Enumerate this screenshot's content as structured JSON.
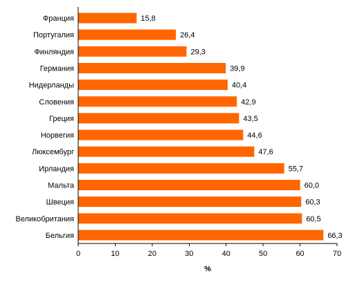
{
  "chart_data": {
    "type": "bar",
    "orientation": "horizontal",
    "categories": [
      "Франция",
      "Португалия",
      "Финляндия",
      "Германия",
      "Нидерланды",
      "Словения",
      "Греция",
      "Норвегия",
      "Люксембург",
      "Ирландия",
      "Мальта",
      "Швеция",
      "Великобритания",
      "Бельгия"
    ],
    "values": [
      15.8,
      26.4,
      29.3,
      39.9,
      40.4,
      42.9,
      43.5,
      44.6,
      47.6,
      55.7,
      60.0,
      60.3,
      60.5,
      66.3
    ],
    "value_labels": [
      "15,8",
      "26,4",
      "29,3",
      "39,9",
      "40,4",
      "42,9",
      "43,5",
      "44,6",
      "47,6",
      "55,7",
      "60,0",
      "60,3",
      "60,5",
      "66,3"
    ],
    "xlabel": "%",
    "xlim": [
      0,
      70
    ],
    "xticks": [
      0,
      10,
      20,
      30,
      40,
      50,
      60,
      70
    ],
    "grid": false,
    "bar_color": "#FF6600"
  }
}
